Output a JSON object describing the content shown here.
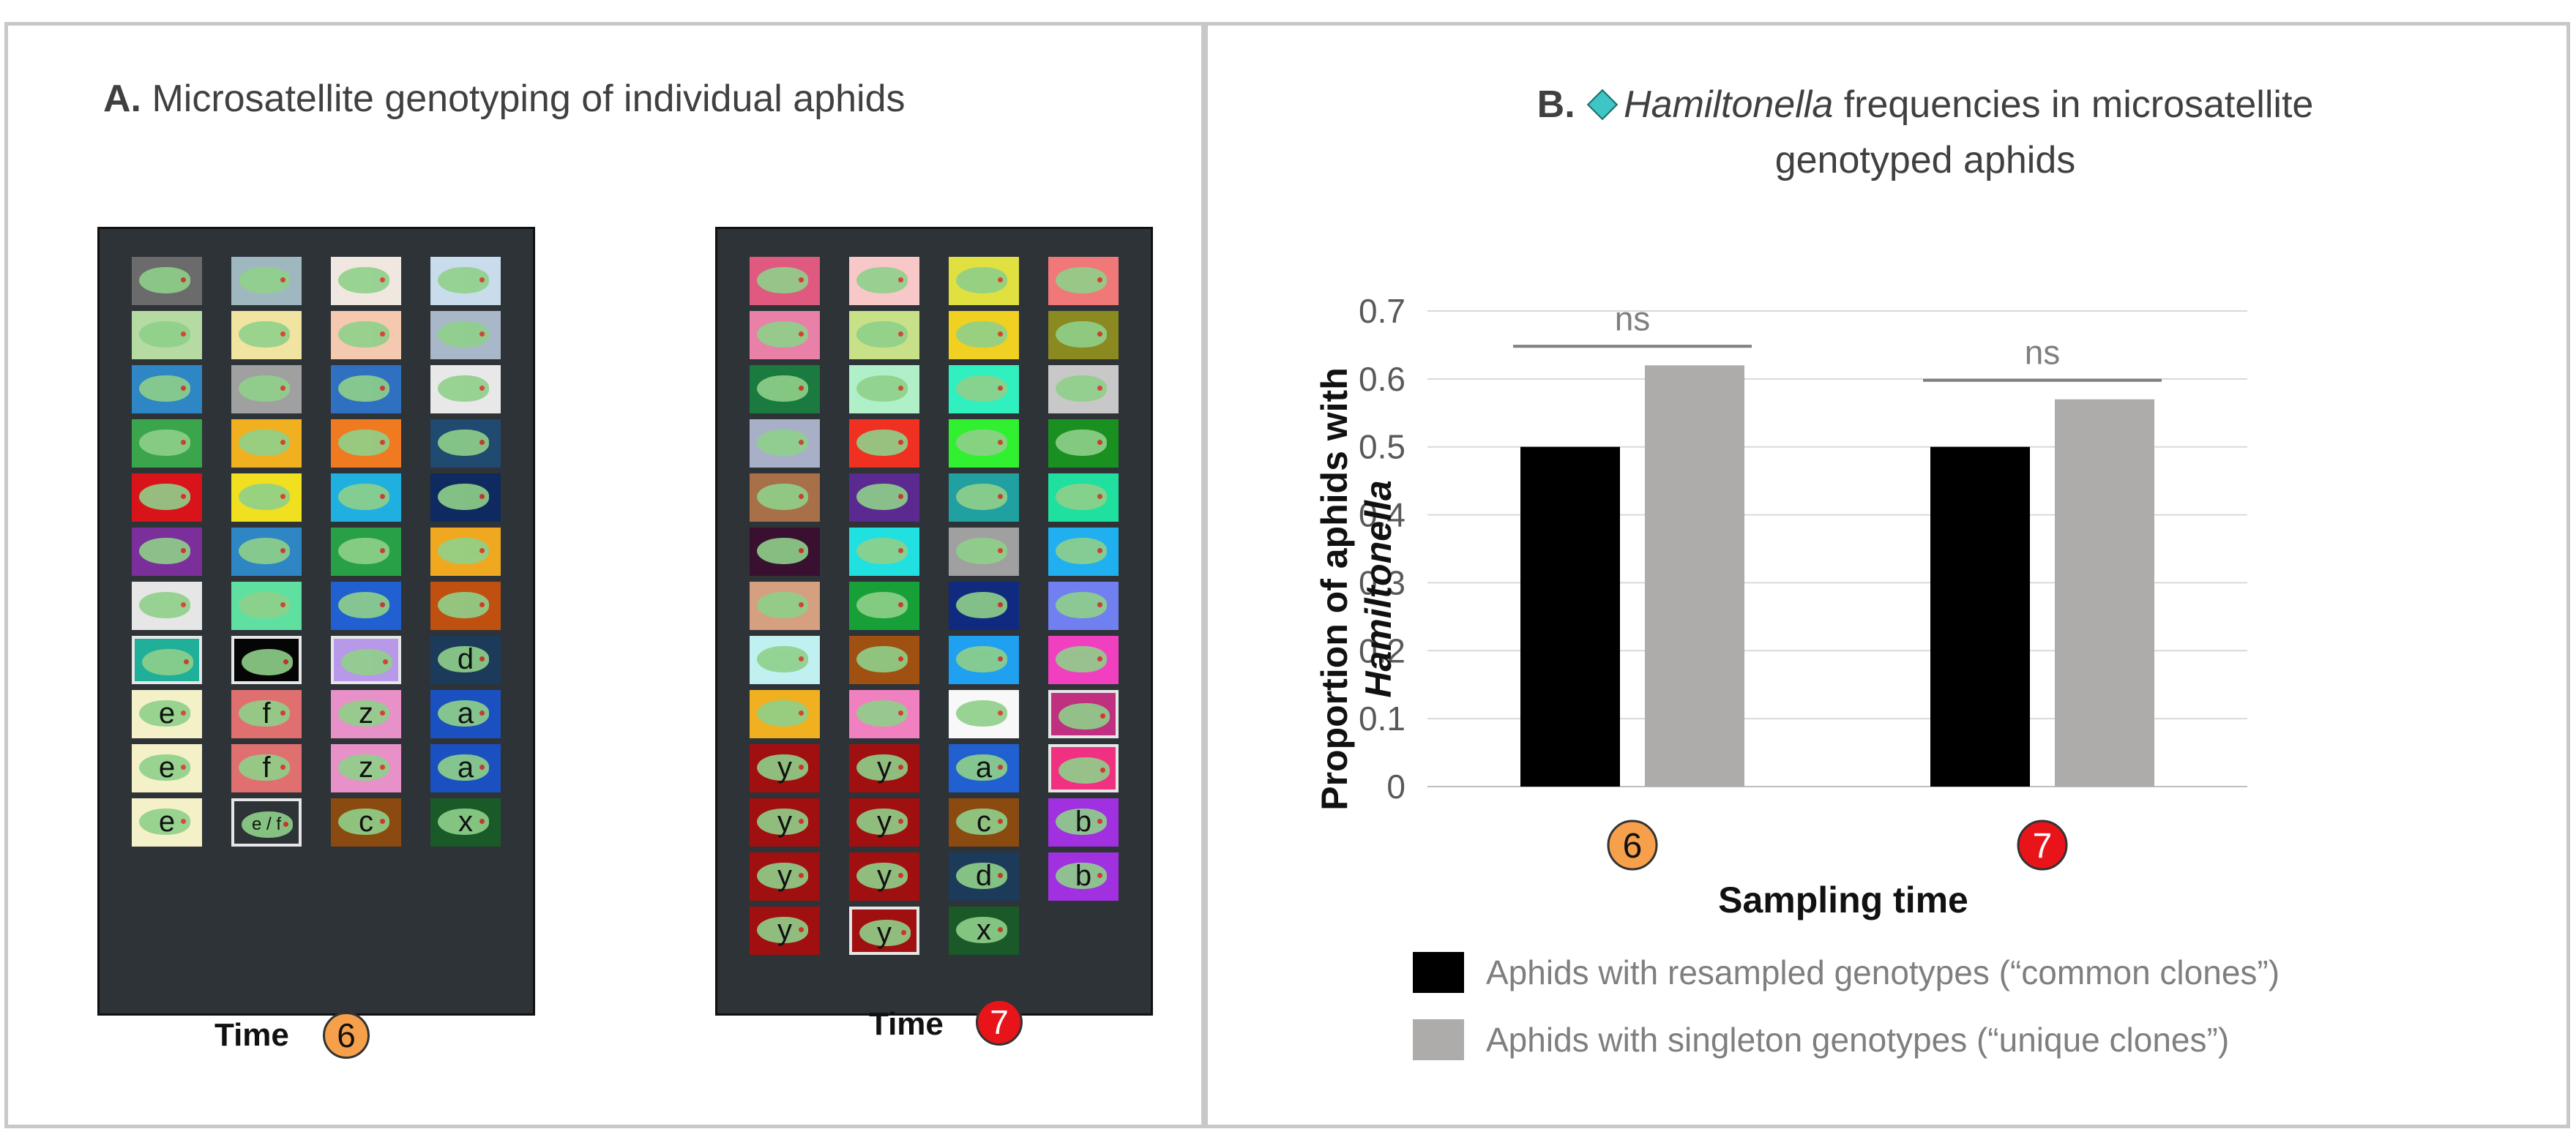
{
  "panel_a": {
    "title_bold": "A.",
    "title_text": "Microsatellite genotyping of individual aphids",
    "time_label": "Time",
    "time_6": "6",
    "time_7": "7",
    "plate_6": {
      "columns": [
        [
          {
            "color": "#6b6b6b",
            "letter": ""
          },
          {
            "color": "#b5dba3",
            "letter": ""
          },
          {
            "color": "#2f86c4",
            "letter": ""
          },
          {
            "color": "#3aa54a",
            "letter": ""
          },
          {
            "color": "#d8141a",
            "letter": ""
          },
          {
            "color": "#7a2f9a",
            "letter": ""
          },
          {
            "color": "#e6e6e6",
            "letter": ""
          },
          {
            "color": "#20b09a",
            "letter": "",
            "outlined": true
          },
          {
            "color": "#f4f0c8",
            "letter": "e"
          },
          {
            "color": "#f4f0c8",
            "letter": "e"
          },
          {
            "color": "#f4f0c8",
            "letter": "e"
          }
        ],
        [
          {
            "color": "#9fb8c0",
            "letter": ""
          },
          {
            "color": "#f0e4a0",
            "letter": ""
          },
          {
            "color": "#a0a0a0",
            "letter": ""
          },
          {
            "color": "#f0b020",
            "letter": ""
          },
          {
            "color": "#f0e020",
            "letter": ""
          },
          {
            "color": "#2f86c4",
            "letter": ""
          },
          {
            "color": "#60e0a0",
            "letter": ""
          },
          {
            "color": "#050505",
            "letter": "",
            "outlined": true
          },
          {
            "color": "#e07070",
            "letter": "f"
          },
          {
            "color": "#e07070",
            "letter": "f"
          },
          {
            "color": "#2e3338",
            "letter": "e / f",
            "outlined": true
          }
        ],
        [
          {
            "color": "#f0e8e0",
            "letter": ""
          },
          {
            "color": "#f5c8b0",
            "letter": ""
          },
          {
            "color": "#2f70c0",
            "letter": ""
          },
          {
            "color": "#f07a20",
            "letter": ""
          },
          {
            "color": "#20b0e0",
            "letter": ""
          },
          {
            "color": "#28a048",
            "letter": ""
          },
          {
            "color": "#2060d0",
            "letter": ""
          },
          {
            "color": "#b898e8",
            "letter": "",
            "outlined": true
          },
          {
            "color": "#e890c8",
            "letter": "z"
          },
          {
            "color": "#e890c8",
            "letter": "z"
          },
          {
            "color": "#8a4a10",
            "letter": "c"
          }
        ],
        [
          {
            "color": "#c8dcec",
            "letter": ""
          },
          {
            "color": "#a8b8c8",
            "letter": ""
          },
          {
            "color": "#e8e8e8",
            "letter": ""
          },
          {
            "color": "#204a70",
            "letter": ""
          },
          {
            "color": "#0e2a60",
            "letter": ""
          },
          {
            "color": "#f0a820",
            "letter": ""
          },
          {
            "color": "#c05010",
            "letter": ""
          },
          {
            "color": "#1c3a5a",
            "letter": "d"
          },
          {
            "color": "#1a50c0",
            "letter": "a"
          },
          {
            "color": "#1a50c0",
            "letter": "a"
          },
          {
            "color": "#1a5a28",
            "letter": "x"
          }
        ]
      ]
    },
    "plate_7": {
      "columns": [
        [
          {
            "color": "#e05a80",
            "letter": ""
          },
          {
            "color": "#e880a8",
            "letter": ""
          },
          {
            "color": "#1a7a40",
            "letter": ""
          },
          {
            "color": "#a8b0c8",
            "letter": ""
          },
          {
            "color": "#a87048",
            "letter": ""
          },
          {
            "color": "#3a1030",
            "letter": ""
          },
          {
            "color": "#d4a080",
            "letter": ""
          },
          {
            "color": "#c0f0f0",
            "letter": ""
          },
          {
            "color": "#f0b020",
            "letter": ""
          },
          {
            "color": "#a01010",
            "letter": "y"
          },
          {
            "color": "#a01010",
            "letter": "y"
          },
          {
            "color": "#a01010",
            "letter": "y"
          },
          {
            "color": "#a01010",
            "letter": "y"
          }
        ],
        [
          {
            "color": "#f8c8c8",
            "letter": ""
          },
          {
            "color": "#c8e088",
            "letter": ""
          },
          {
            "color": "#b0f0c8",
            "letter": ""
          },
          {
            "color": "#f03020",
            "letter": ""
          },
          {
            "color": "#5a2a90",
            "letter": ""
          },
          {
            "color": "#20e0e0",
            "letter": ""
          },
          {
            "color": "#18a038",
            "letter": ""
          },
          {
            "color": "#a05010",
            "letter": ""
          },
          {
            "color": "#f080c0",
            "letter": ""
          },
          {
            "color": "#a01010",
            "letter": "y"
          },
          {
            "color": "#a01010",
            "letter": "y"
          },
          {
            "color": "#a01010",
            "letter": "y"
          },
          {
            "color": "#a01010",
            "letter": "y",
            "outlined": true
          }
        ],
        [
          {
            "color": "#e0e040",
            "letter": ""
          },
          {
            "color": "#f0d020",
            "letter": ""
          },
          {
            "color": "#30f0c0",
            "letter": ""
          },
          {
            "color": "#30f030",
            "letter": ""
          },
          {
            "color": "#20a0a0",
            "letter": ""
          },
          {
            "color": "#a0a0a0",
            "letter": ""
          },
          {
            "color": "#102a80",
            "letter": ""
          },
          {
            "color": "#20a0f0",
            "letter": ""
          },
          {
            "color": "#f8f8f8",
            "letter": ""
          },
          {
            "color": "#2060d0",
            "letter": "a"
          },
          {
            "color": "#8a4a10",
            "letter": "c"
          },
          {
            "color": "#1c3a5a",
            "letter": "d"
          },
          {
            "color": "#1a5a28",
            "letter": "x"
          }
        ],
        [
          {
            "color": "#f07878",
            "letter": ""
          },
          {
            "color": "#8a8a20",
            "letter": ""
          },
          {
            "color": "#c8c8c8",
            "letter": ""
          },
          {
            "color": "#1a9020",
            "letter": ""
          },
          {
            "color": "#20e0a0",
            "letter": ""
          },
          {
            "color": "#20b0f0",
            "letter": ""
          },
          {
            "color": "#7080f0",
            "letter": ""
          },
          {
            "color": "#f040c0",
            "letter": ""
          },
          {
            "color": "#c03080",
            "letter": "",
            "outlined": true
          },
          {
            "color": "#f03080",
            "letter": "",
            "outlined": true
          },
          {
            "color": "#a030e0",
            "letter": "b"
          },
          {
            "color": "#a030e0",
            "letter": "b"
          }
        ]
      ]
    }
  },
  "panel_b": {
    "title_bold": "B.",
    "title_italic": "Hamiltonella",
    "title_rest_line1": "frequencies in microsatellite",
    "title_line2": "genotyped aphids",
    "accent_color": "#3ec6c6"
  },
  "chart_data": {
    "type": "bar",
    "categories": [
      "6",
      "7"
    ],
    "category_badge_colors": [
      "#f7a04b",
      "#e8141a"
    ],
    "category_badge_text_colors": [
      "#111111",
      "#ffffff"
    ],
    "series": [
      {
        "name": "Aphids with resampled genotypes (“common clones”)",
        "color": "#000000",
        "values": [
          0.5,
          0.5
        ]
      },
      {
        "name": "Aphids with singleton genotypes (“unique clones”)",
        "color": "#aeabab",
        "values": [
          0.62,
          0.57
        ]
      }
    ],
    "significance": [
      "ns",
      "ns"
    ],
    "xlabel": "Sampling time",
    "ylabel_line1": "Proportion of aphids with",
    "ylabel_line2": "Hamiltonella",
    "ylim": [
      0,
      0.7
    ],
    "yticks": [
      "0",
      "0.1",
      "0.2",
      "0.3",
      "0.4",
      "0.5",
      "0.6",
      "0.7"
    ],
    "grid": true,
    "legend_position": "bottom"
  }
}
